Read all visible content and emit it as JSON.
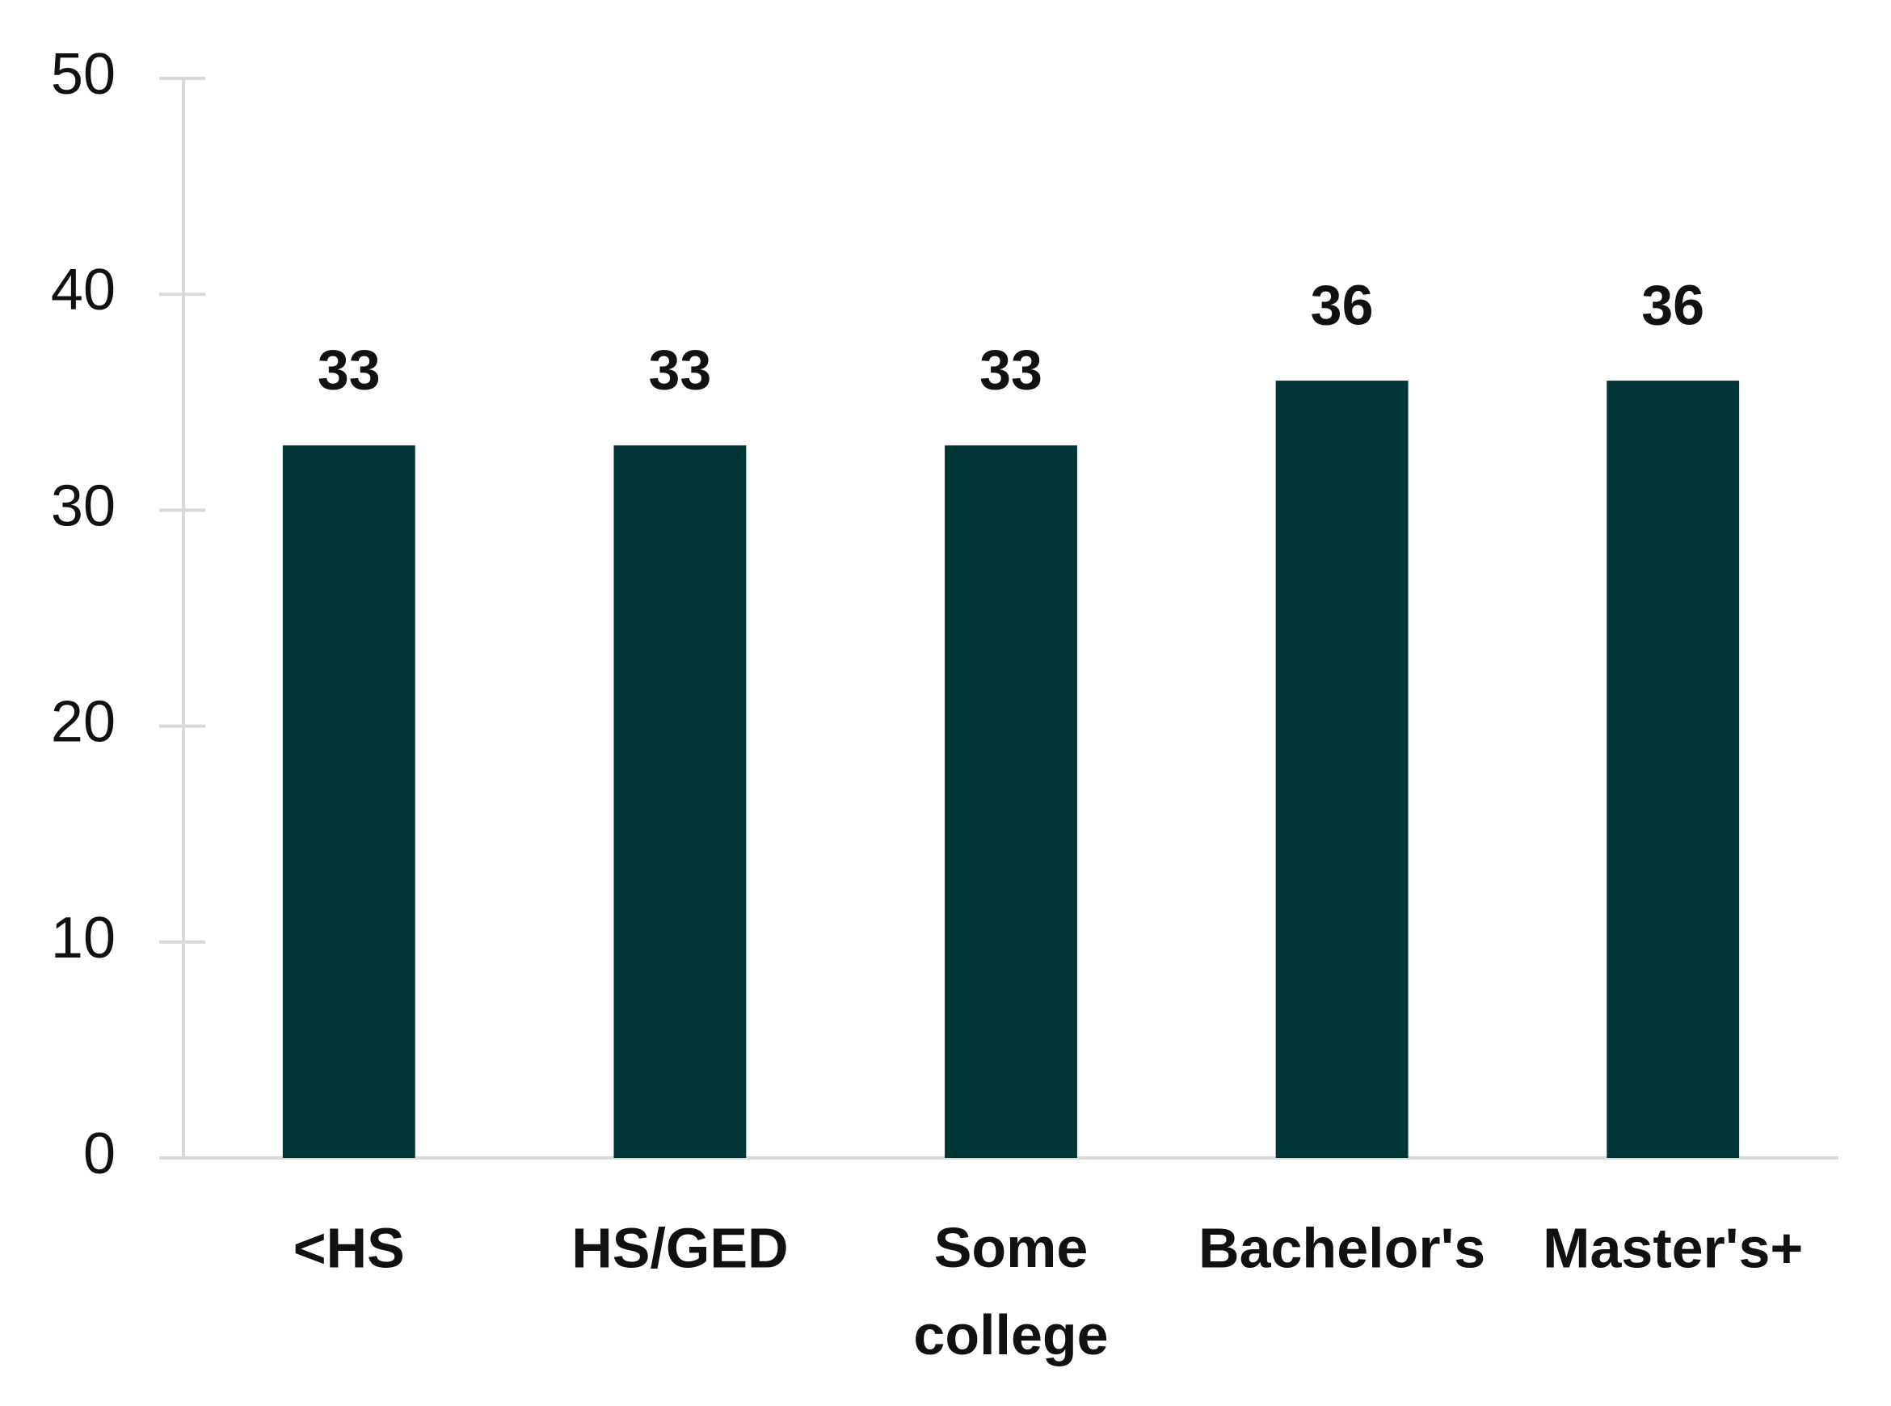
{
  "chart_data": {
    "type": "bar",
    "categories": [
      "<HS",
      "HS/GED",
      "Some college",
      "Bachelor's",
      "Master's+"
    ],
    "values": [
      33,
      33,
      33,
      36,
      36
    ],
    "color": "#003635",
    "ylim": [
      0,
      50
    ],
    "yticks": [
      0,
      10,
      20,
      30,
      40,
      50
    ],
    "grid": false
  }
}
